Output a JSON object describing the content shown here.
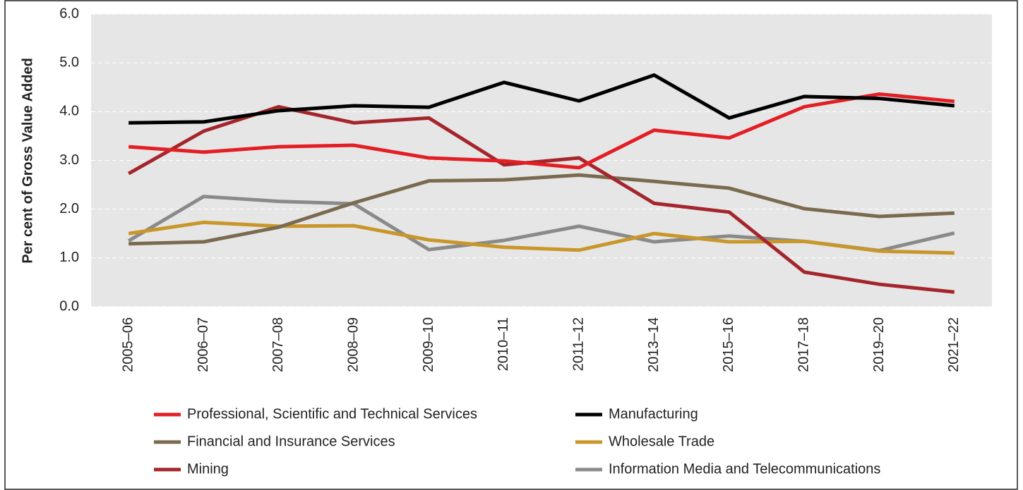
{
  "chart_data": {
    "type": "line",
    "y_label": "Per cent of Gross Value Added",
    "categories": [
      "2005–06",
      "2006–07",
      "2007–08",
      "2008–09",
      "2009–10",
      "2010–11",
      "2011–12",
      "2013–14",
      "2015–16",
      "2017–18",
      "2019–20",
      "2021–22"
    ],
    "series": [
      {
        "name": "Professional, Scientific and Technical Services",
        "color": "#e31e24",
        "values": [
          3.28,
          3.17,
          3.28,
          3.31,
          3.05,
          2.99,
          2.85,
          3.62,
          3.46,
          4.1,
          4.36,
          4.21
        ]
      },
      {
        "name": "Manufacturing",
        "color": "#000000",
        "values": [
          3.77,
          3.79,
          4.02,
          4.12,
          4.09,
          4.6,
          4.22,
          4.75,
          3.87,
          4.31,
          4.27,
          4.12
        ]
      },
      {
        "name": "Financial and Insurance Services",
        "color": "#7a6a50",
        "values": [
          1.29,
          1.33,
          1.63,
          2.13,
          2.58,
          2.6,
          2.7,
          2.57,
          2.43,
          2.01,
          1.85,
          1.92
        ]
      },
      {
        "name": "Wholesale Trade",
        "color": "#c9962a",
        "values": [
          1.5,
          1.73,
          1.65,
          1.66,
          1.37,
          1.22,
          1.16,
          1.5,
          1.33,
          1.34,
          1.14,
          1.1
        ]
      },
      {
        "name": "Mining",
        "color": "#a4262c",
        "values": [
          2.73,
          3.6,
          4.1,
          3.77,
          3.87,
          2.91,
          3.05,
          2.12,
          1.94,
          0.71,
          0.46,
          0.3
        ]
      },
      {
        "name": "Information Media and Telecommunications",
        "color": "#8a8a8a",
        "values": [
          1.35,
          2.26,
          2.16,
          2.11,
          1.17,
          1.36,
          1.65,
          1.33,
          1.45,
          1.34,
          1.15,
          1.51
        ]
      }
    ],
    "ylim": [
      0,
      6
    ],
    "yticks": [
      {
        "value": 0,
        "label": "0.0"
      },
      {
        "value": 1,
        "label": "1.0"
      },
      {
        "value": 2,
        "label": "2.0"
      },
      {
        "value": 3,
        "label": "3.0"
      },
      {
        "value": 4,
        "label": "4.0"
      },
      {
        "value": 5,
        "label": "5.0"
      },
      {
        "value": 6,
        "label": "6.0"
      }
    ],
    "grid": true,
    "legend": "bottom"
  }
}
